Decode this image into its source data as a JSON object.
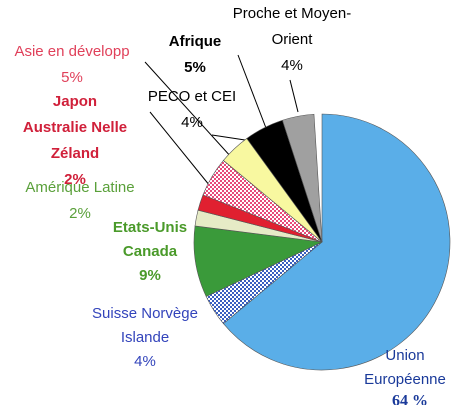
{
  "chart_data": {
    "type": "pie",
    "categories": [
      [
        "Union",
        "Européenne"
      ],
      [
        "Suisse Norvège",
        "Islande"
      ],
      [
        "Etats-Unis",
        "Canada"
      ],
      [
        "Amérique Latine"
      ],
      [
        "Japon",
        "Australie Nelle",
        "Zéland"
      ],
      [
        "Asie en développ"
      ],
      [
        "PECO et CEI"
      ],
      [
        "Afrique"
      ],
      [
        "Proche et Moyen-",
        "Orient"
      ]
    ],
    "values": [
      64,
      4,
      9,
      2,
      2,
      5,
      4,
      5,
      4
    ],
    "value_labels": [
      "64 %",
      "4%",
      "9%",
      "2%",
      "2%",
      "5%",
      "4%",
      "5%",
      "4%"
    ],
    "colors": [
      "#5aaee8",
      "#3a5fc0",
      "#3a9a3a",
      "#e6ebc6",
      "#e02030",
      "#e84a7a",
      "#f8f8a0",
      "#000000",
      "#a0a0a0"
    ],
    "patterns": [
      null,
      "check",
      null,
      null,
      null,
      "check",
      null,
      null,
      null
    ],
    "label_colors": [
      "#1a3a9a",
      "#3344bb",
      "#4a9a2a",
      "#5aa03a",
      "#d0203a",
      "#e0405a",
      "#000000",
      "#000000",
      "#000000"
    ]
  }
}
